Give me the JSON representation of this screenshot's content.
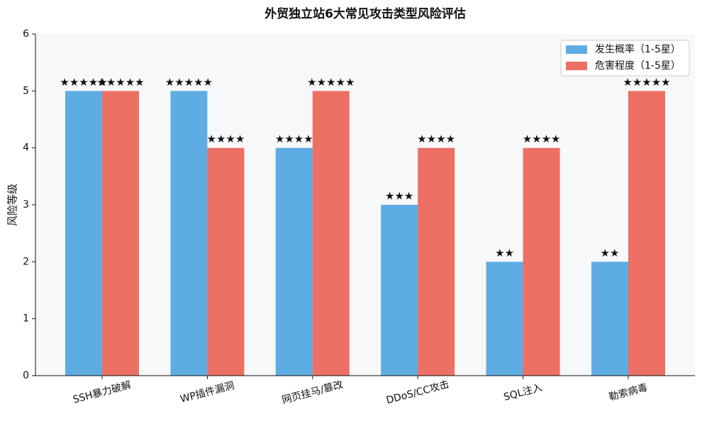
{
  "chart_data": {
    "type": "bar",
    "title": "外贸独立站6大常见攻击类型风险评估",
    "y_label": "风险等级",
    "categories": [
      "SSH暴力破解",
      "WP插件漏洞",
      "网页挂马/篡改",
      "DDoS/CC攻击",
      "SQL注入",
      "勒索病毒"
    ],
    "series": [
      {
        "name": "发生概率（1-5星）",
        "color": "#5dade2",
        "values": [
          5,
          5,
          4,
          3,
          2,
          2
        ],
        "value_labels": [
          "★★★★★",
          "★★★★★",
          "★★★★",
          "★★★",
          "★★",
          "★★"
        ]
      },
      {
        "name": "危害程度（1-5星）",
        "color": "#ec7063",
        "values": [
          5,
          4,
          5,
          4,
          4,
          5
        ],
        "value_labels": [
          "★★★★★",
          "★★★★",
          "★★★★★",
          "★★★★",
          "★★★★",
          "★★★★★"
        ]
      }
    ],
    "ylim": [
      0,
      6
    ],
    "yticks": [
      0,
      1,
      2,
      3,
      4,
      5,
      6
    ],
    "grid": false,
    "legend": "upper right"
  }
}
